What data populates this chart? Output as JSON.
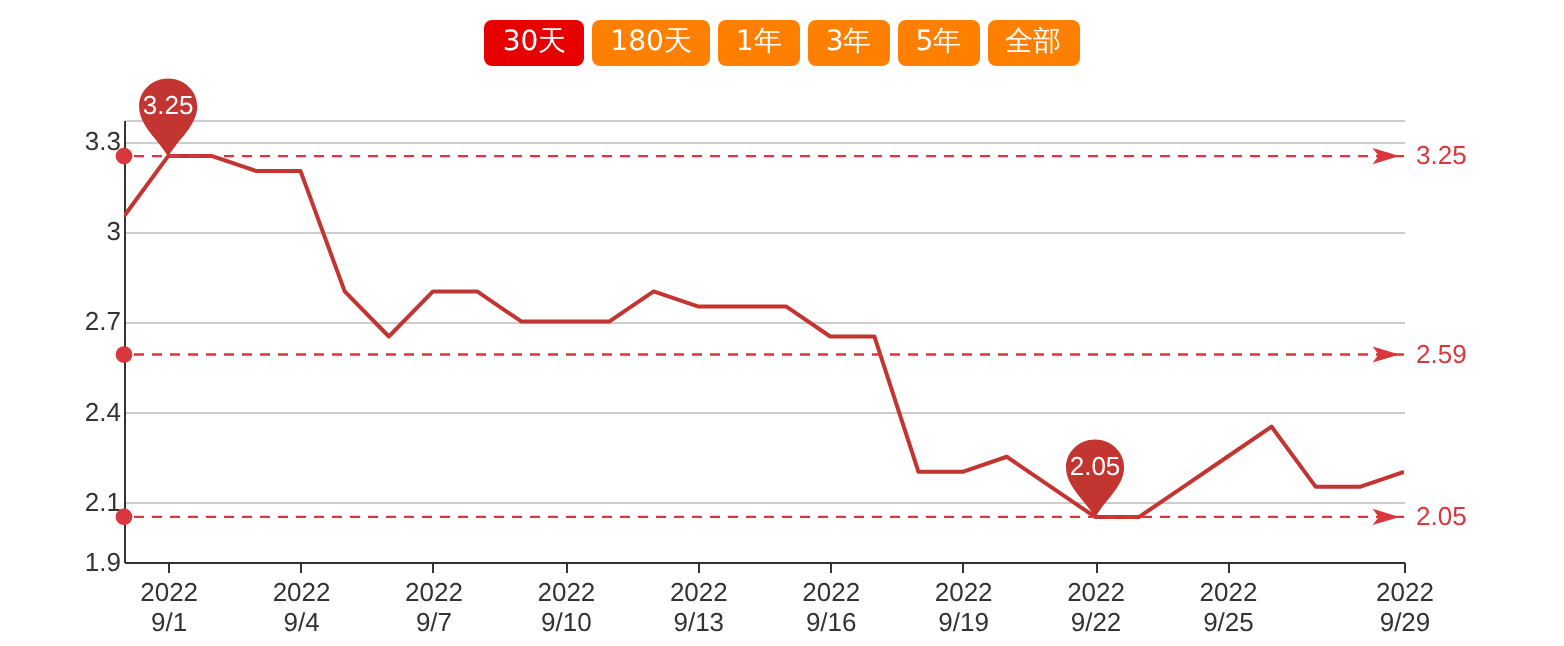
{
  "chart_data": {
    "type": "line",
    "categories": [
      null,
      "2022\n9/1",
      null,
      null,
      "2022\n9/4",
      null,
      null,
      "2022\n9/7",
      null,
      null,
      "2022\n9/10",
      null,
      null,
      "2022\n9/13",
      null,
      null,
      "2022\n9/16",
      null,
      null,
      "2022\n9/19",
      null,
      null,
      "2022\n9/22",
      null,
      null,
      "2022\n9/25",
      null,
      null,
      null,
      "2022\n9/29"
    ],
    "series": [
      {
        "color": "#c23531",
        "values": [
          3.05,
          3.25,
          3.25,
          3.2,
          3.2,
          2.8,
          2.65,
          2.8,
          2.8,
          2.7,
          2.7,
          2.7,
          2.8,
          2.75,
          2.75,
          2.75,
          2.65,
          2.65,
          2.2,
          2.2,
          2.25,
          2.15,
          2.05,
          2.05,
          2.15,
          2.25,
          2.35,
          2.15,
          2.15,
          2.2
        ]
      }
    ],
    "ylim": [
      1.9,
      3.37
    ],
    "yticks": [
      1.9,
      2.1,
      2.4,
      2.7,
      3,
      3.3,
      {
        "value": 3.37,
        "label": null
      }
    ],
    "grid": "y",
    "legend": false,
    "marker": "none",
    "line_style": "solid",
    "ref_lines": [
      {
        "axis": "y",
        "value": 3.25,
        "label": "3.25",
        "color": "#d9363e",
        "line_style": "dashed"
      },
      {
        "axis": "y",
        "value": 2.59,
        "label": "2.59",
        "color": "#d9363e",
        "line_style": "dashed"
      },
      {
        "axis": "y",
        "value": 2.05,
        "label": "2.05",
        "color": "#d9363e",
        "line_style": "dashed"
      }
    ],
    "annotations": [
      "30天",
      "180天",
      "1年",
      "3年",
      "5年",
      "全部",
      {
        "text": "3.25",
        "x": "2022\n9/1",
        "y": 3.25
      },
      {
        "text": "2.05",
        "x": "2022\n9/22",
        "y": 2.05
      }
    ]
  }
}
